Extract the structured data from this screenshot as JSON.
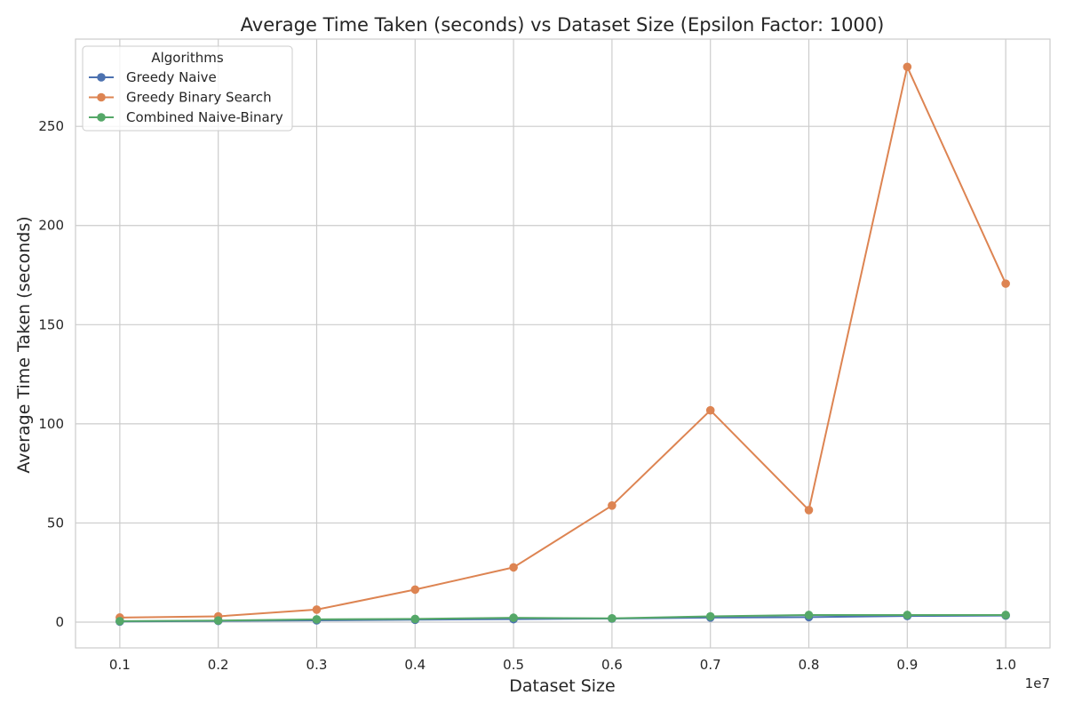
{
  "chart_data": {
    "type": "line",
    "title": "Average Time Taken (seconds) vs Dataset Size (Epsilon Factor: 1000)",
    "xlabel": "Dataset Size",
    "ylabel": "Average Time Taken (seconds)",
    "x_offset_label": "1e7",
    "x": [
      1000000,
      2000000,
      3000000,
      4000000,
      5000000,
      6000000,
      7000000,
      8000000,
      9000000,
      10000000
    ],
    "x_tick_labels": [
      "0.1",
      "0.2",
      "0.3",
      "0.4",
      "0.5",
      "0.6",
      "0.7",
      "0.8",
      "0.9",
      "1.0"
    ],
    "y_ticks": [
      0,
      50,
      100,
      150,
      200,
      250
    ],
    "ylim": [
      -13,
      294
    ],
    "xlim": [
      550000,
      10450000
    ],
    "grid": true,
    "legend": {
      "title": "Algorithms",
      "placement": "top-left"
    },
    "series": [
      {
        "name": "Greedy Naive",
        "color": "#4c72b0",
        "values": [
          0.3,
          0.6,
          0.9,
          1.2,
          1.5,
          1.8,
          2.3,
          2.5,
          3.1,
          3.3
        ]
      },
      {
        "name": "Greedy Binary Search",
        "color": "#dd8452",
        "values": [
          2.3,
          2.9,
          6.3,
          16.4,
          27.6,
          58.8,
          106.8,
          56.5,
          280.0,
          170.7
        ]
      },
      {
        "name": "Combined Naive-Binary",
        "color": "#55a868",
        "values": [
          0.5,
          0.8,
          1.4,
          1.6,
          2.2,
          1.9,
          2.9,
          3.6,
          3.6,
          3.6
        ]
      }
    ]
  }
}
